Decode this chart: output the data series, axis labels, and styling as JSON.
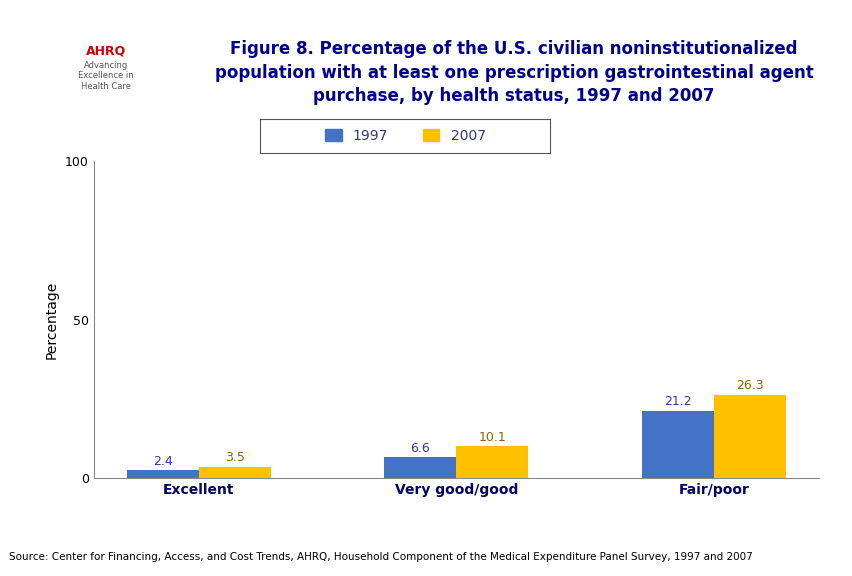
{
  "title": "Figure 8. Percentage of the U.S. civilian noninstitutionalized\npopulation with at least one prescription gastrointestinal agent\npurchase, by health status, 1997 and 2007",
  "categories": [
    "Excellent",
    "Very good/good",
    "Fair/poor"
  ],
  "values_1997": [
    2.4,
    6.6,
    21.2
  ],
  "values_2007": [
    3.5,
    10.1,
    26.3
  ],
  "color_1997": "#4472C4",
  "color_2007": "#FFC000",
  "ylabel": "Percentage",
  "ylim": [
    0,
    100
  ],
  "yticks": [
    0,
    50,
    100
  ],
  "legend_labels": [
    "1997",
    "2007"
  ],
  "source_text": "Source: Center for Financing, Access, and Cost Trends, AHRQ, Household Component of the Medical Expenditure Panel Survey, 1997 and 2007",
  "bar_width": 0.28,
  "title_color": "#00008B",
  "bg_color": "#FFFFFF",
  "plot_bg_color": "#FFFFFF",
  "header_bar_color": "#00008B",
  "annotation_color_1997": "#3333AA",
  "annotation_color_2007": "#886600",
  "annotation_fontsize": 9,
  "axis_label_fontsize": 10,
  "legend_fontsize": 10,
  "title_fontsize": 12,
  "legend_text_color": "#333399",
  "xticklabel_color": "#000066",
  "border_color": "#00008B",
  "border_thickness": 0.018
}
